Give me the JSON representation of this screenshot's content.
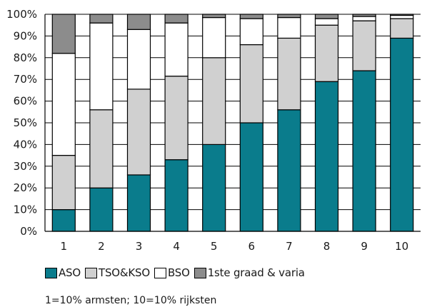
{
  "chart_data": {
    "type": "bar",
    "stacked": true,
    "percent": true,
    "categories": [
      "1",
      "2",
      "3",
      "4",
      "5",
      "6",
      "7",
      "8",
      "9",
      "10"
    ],
    "series": [
      {
        "name": "ASO",
        "color": "#0a7c8c",
        "values": [
          10,
          20,
          26,
          33,
          40,
          50,
          56,
          69,
          74,
          89
        ]
      },
      {
        "name": "TSO&KSO",
        "color": "#d0d0d0",
        "values": [
          25,
          36,
          39.5,
          38.5,
          40,
          36,
          33,
          26,
          23,
          9
        ]
      },
      {
        "name": "BSO",
        "color": "#ffffff",
        "values": [
          47,
          40,
          27.5,
          24.5,
          18.5,
          12,
          9.5,
          3,
          2,
          1.5
        ]
      },
      {
        "name": "1ste graad & varia",
        "color": "#8c8c8c",
        "values": [
          18,
          4,
          7,
          4,
          1.5,
          2,
          1.5,
          2,
          1,
          0.5
        ]
      }
    ],
    "yticks": [
      "0%",
      "10%",
      "20%",
      "30%",
      "40%",
      "50%",
      "60%",
      "70%",
      "80%",
      "90%",
      "100%"
    ],
    "ylim": [
      0,
      100
    ],
    "grid": "horizontal",
    "legend_position": "bottom-left"
  },
  "footnote": "1=10% armsten; 10=10% rijksten"
}
